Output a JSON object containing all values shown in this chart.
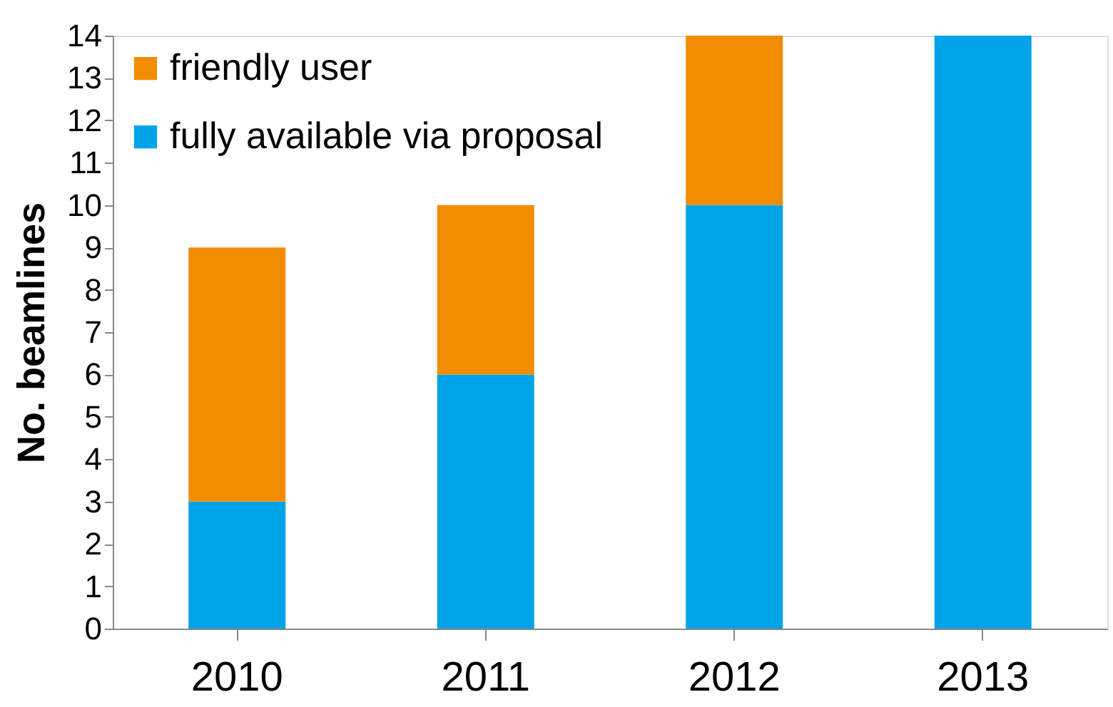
{
  "chart_data": {
    "type": "bar",
    "stacked": true,
    "ylabel": "No. beamlines",
    "categories": [
      "2010",
      "2011",
      "2012",
      "2013"
    ],
    "series": [
      {
        "name": "fully available via proposal",
        "color": "#00a3e8",
        "values": [
          3,
          6,
          10,
          14
        ]
      },
      {
        "name": "friendly user",
        "color": "#f28c00",
        "values": [
          6,
          4,
          4,
          0
        ]
      }
    ],
    "ylim": [
      0,
      14
    ],
    "yticks": [
      0,
      1,
      2,
      3,
      4,
      5,
      6,
      7,
      8,
      9,
      10,
      11,
      12,
      13,
      14
    ],
    "grid": false,
    "legend": "top left"
  }
}
